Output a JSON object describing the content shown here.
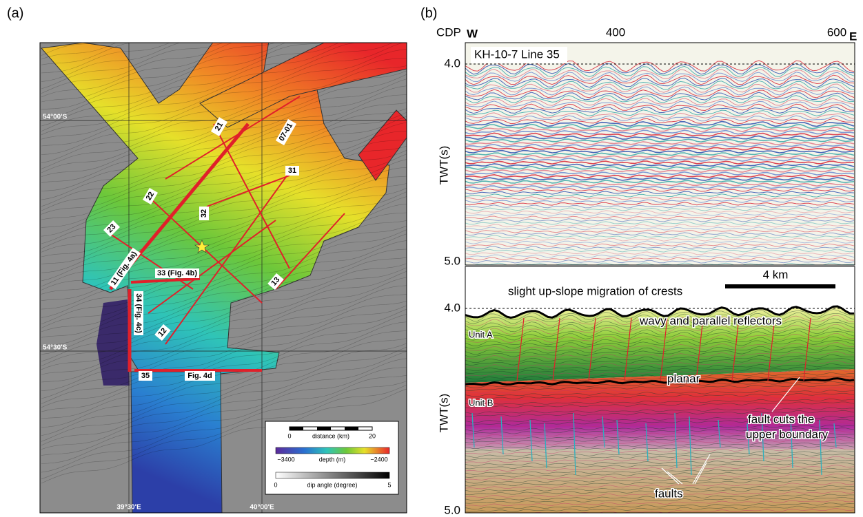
{
  "panel_a": {
    "label": "(a)",
    "latitudes": [
      "54°00'S",
      "54°30'S"
    ],
    "longitudes": [
      "39°30'E",
      "40°00'E"
    ],
    "lines": [
      "21",
      "07-01",
      "31",
      "22",
      "32",
      "23",
      "11 (Fig. 4a)",
      "33 (Fig. 4b)",
      "34 (Fig. 4c)",
      "13",
      "12",
      "35",
      "Fig. 4d"
    ],
    "legend": {
      "distance": {
        "min": "0",
        "title": "distance (km)",
        "max": "20"
      },
      "depth": {
        "min": "−3400",
        "title": "depth (m)",
        "max": "−2400"
      },
      "dip": {
        "min": "0",
        "title": "dip angle (degree)",
        "max": "5"
      }
    }
  },
  "panel_b": {
    "label": "(b)",
    "cdp": "CDP",
    "west": "W",
    "east": "E",
    "cdp_ticks": [
      "400",
      "600"
    ],
    "top": {
      "title": "KH-10-7 Line 35",
      "y_top": "4.0",
      "y_bottom": "5.0",
      "y_label": "TWT(s)"
    },
    "bottom": {
      "y_top": "4.0",
      "y_bottom": "5.0",
      "y_label": "TWT(s)",
      "annotations": [
        "slight up-slope migration of crests",
        "4 km",
        "wavy and parallel reflectors",
        "Unit A",
        "planar",
        "Unit B",
        "fault cuts the",
        "upper boundary",
        "faults"
      ]
    }
  }
}
